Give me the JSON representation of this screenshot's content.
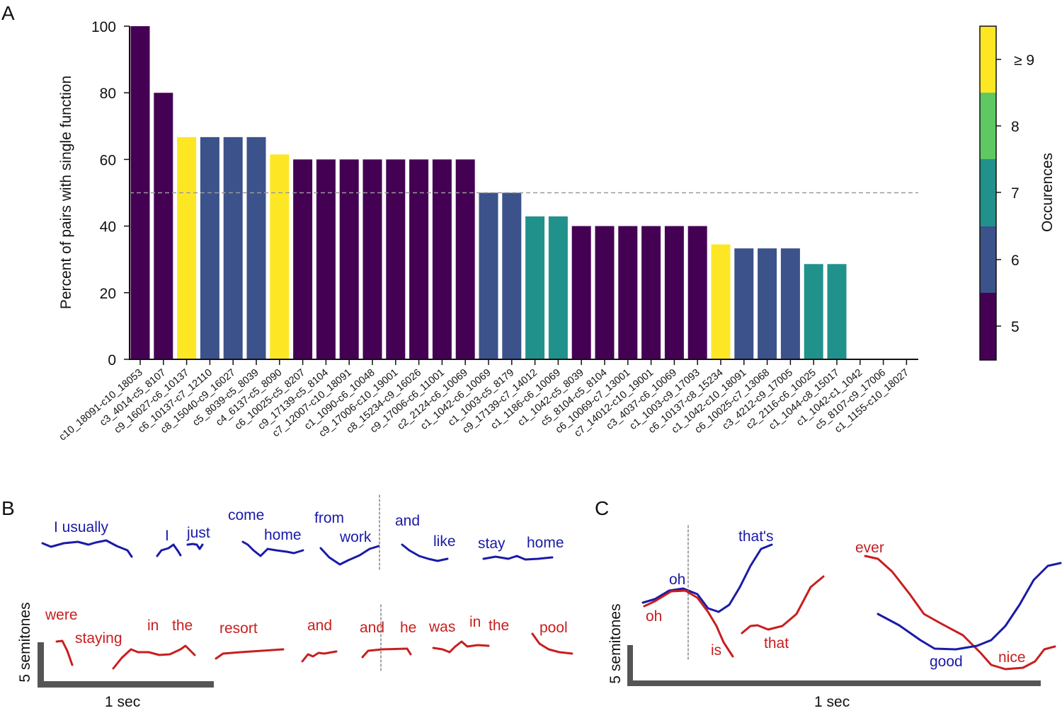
{
  "panels": {
    "a": "A",
    "b": "B",
    "c": "C"
  },
  "chart_data": {
    "type": "bar",
    "ylabel": "Percent of pairs with single function",
    "xlabel": "",
    "ylim": [
      0,
      100
    ],
    "yticks": [
      "0",
      "20",
      "40",
      "60",
      "80",
      "100"
    ],
    "reference_line": {
      "y": 50,
      "style": "dashed",
      "color": "#999999"
    },
    "grid": false,
    "categories": [
      "c10_18091-c10_18053",
      "c3_4014-c5_8107",
      "c9_16027-c6_10137",
      "c6_10137-c7_12110",
      "c8_15040-c9_16027",
      "c5_8039-c5_8039",
      "c4_6137-c5_8090",
      "c6_10025-c5_8207",
      "c9_17139-c5_8104",
      "c7_12007-c10_18091",
      "c1_1090-c6_10048",
      "c9_17006-c10_19001",
      "c8_15234-c9_16026",
      "c9_17006-c6_11001",
      "c2_2124-c6_10069",
      "c1_1042-c6_10069",
      "c1_1003-c5_8179",
      "c9_17139-c7_14012",
      "c1_1186-c6_10069",
      "c1_1042-c5_8039",
      "c5_8104-c5_8104",
      "c6_10069-c7_13001",
      "c7_14012-c10_19001",
      "c3_4037-c6_10069",
      "c1_1003-c9_17093",
      "c6_10137-c8_15234",
      "c1_1042-c10_18091",
      "c6_10025-c7_13068",
      "c3_4212-c9_17005",
      "c2_2116-c6_10025",
      "c1_1044-c8_15017",
      "c1_1042-c1_1042",
      "c5_8107-c9_17006",
      "c1_1155-c10_18027"
    ],
    "values": [
      100,
      80,
      66.7,
      66.7,
      66.7,
      66.7,
      61.5,
      60,
      60,
      60,
      60,
      60,
      60,
      60,
      60,
      50,
      50,
      42.9,
      42.9,
      40,
      40,
      40,
      40,
      40,
      40,
      34.5,
      33.3,
      33.3,
      33.3,
      28.6,
      28.6,
      0,
      0,
      0
    ],
    "occurrences": [
      5,
      5,
      9,
      6,
      6,
      6,
      9,
      5,
      5,
      5,
      5,
      5,
      5,
      5,
      5,
      6,
      6,
      7,
      7,
      5,
      5,
      5,
      5,
      5,
      5,
      9,
      6,
      6,
      6,
      7,
      7,
      5,
      5,
      5
    ],
    "colorbar": {
      "label": "Occurences",
      "ticks": [
        "5",
        "6",
        "7",
        "8",
        "≥ 9"
      ],
      "colors": {
        "5": "#440154",
        "6": "#3b528b",
        "7": "#21918c",
        "8": "#5ec962",
        "9": "#fde725"
      }
    }
  },
  "panel_b": {
    "scale_y": "5 semitones",
    "scale_x": "1 sec",
    "blue_words": [
      "I usually",
      "I",
      "just",
      "come",
      "home",
      "from",
      "work",
      "and",
      "like",
      "stay",
      "home"
    ],
    "red_words": [
      "were",
      "staying",
      "in",
      "the",
      "resort",
      "and",
      "and",
      "he",
      "was",
      "in",
      "the",
      "pool"
    ]
  },
  "panel_c": {
    "scale_y": "5 semitones",
    "scale_x": "1 sec",
    "blue_words": [
      "oh",
      "that's",
      "good"
    ],
    "red_words": [
      "oh",
      "is",
      "that",
      "ever",
      "nice"
    ]
  }
}
